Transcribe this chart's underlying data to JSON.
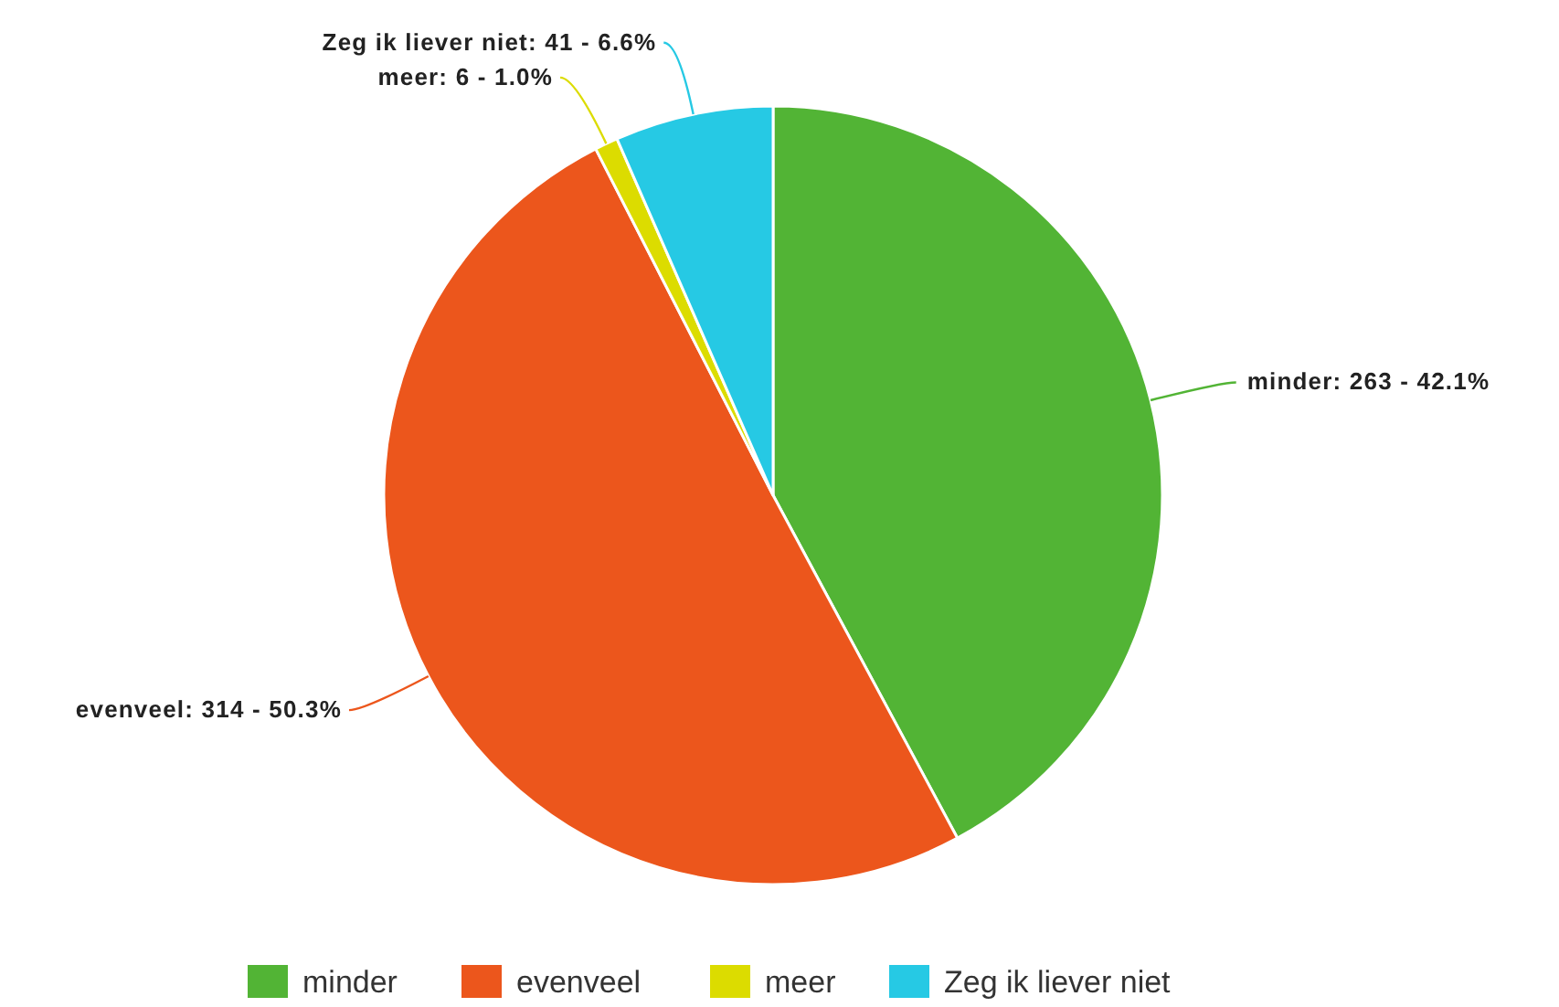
{
  "chart_data": {
    "type": "pie",
    "categories": [
      "minder",
      "evenveel",
      "meer",
      "Zeg ik liever niet"
    ],
    "values": [
      263,
      314,
      6,
      41
    ],
    "colors": [
      "#52b435",
      "#ec561c",
      "#dcdc00",
      "#26c9e4"
    ],
    "value_labels": [
      "minder: 263 - 42.1%",
      "evenveel: 314 - 50.3%",
      "meer: 6 - 1.0%",
      "Zeg ik liever niet: 41 - 6.6%"
    ],
    "legend": "bottom"
  }
}
